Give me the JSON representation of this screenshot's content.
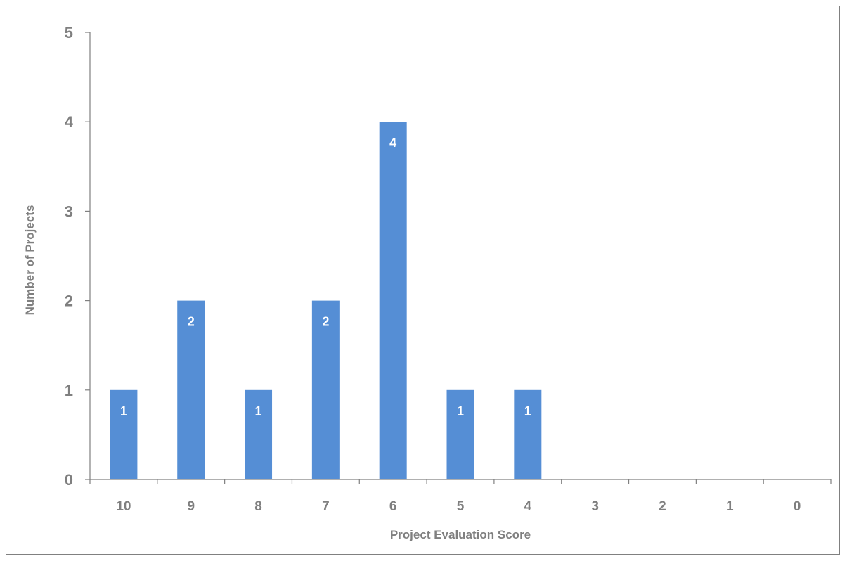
{
  "chart_data": {
    "type": "bar",
    "title": "",
    "xlabel": "Project Evaluation Score",
    "ylabel": "Number of Projects",
    "categories": [
      "10",
      "9",
      "8",
      "7",
      "6",
      "5",
      "4",
      "3",
      "2",
      "1",
      "0"
    ],
    "values": [
      1,
      2,
      1,
      2,
      4,
      1,
      1,
      0,
      0,
      0,
      0
    ],
    "data_labels": [
      "1",
      "2",
      "1",
      "2",
      "4",
      "1",
      "1",
      "",
      "",
      "",
      ""
    ],
    "y_ticks": [
      "0",
      "1",
      "2",
      "3",
      "4",
      "5"
    ],
    "ylim": [
      0,
      5
    ],
    "grid": false,
    "legend": "none",
    "bar_color": "#558ED5",
    "axis_color": "#808080",
    "text_color": "#7F7F7F",
    "data_label_color": "#FFFFFF"
  }
}
